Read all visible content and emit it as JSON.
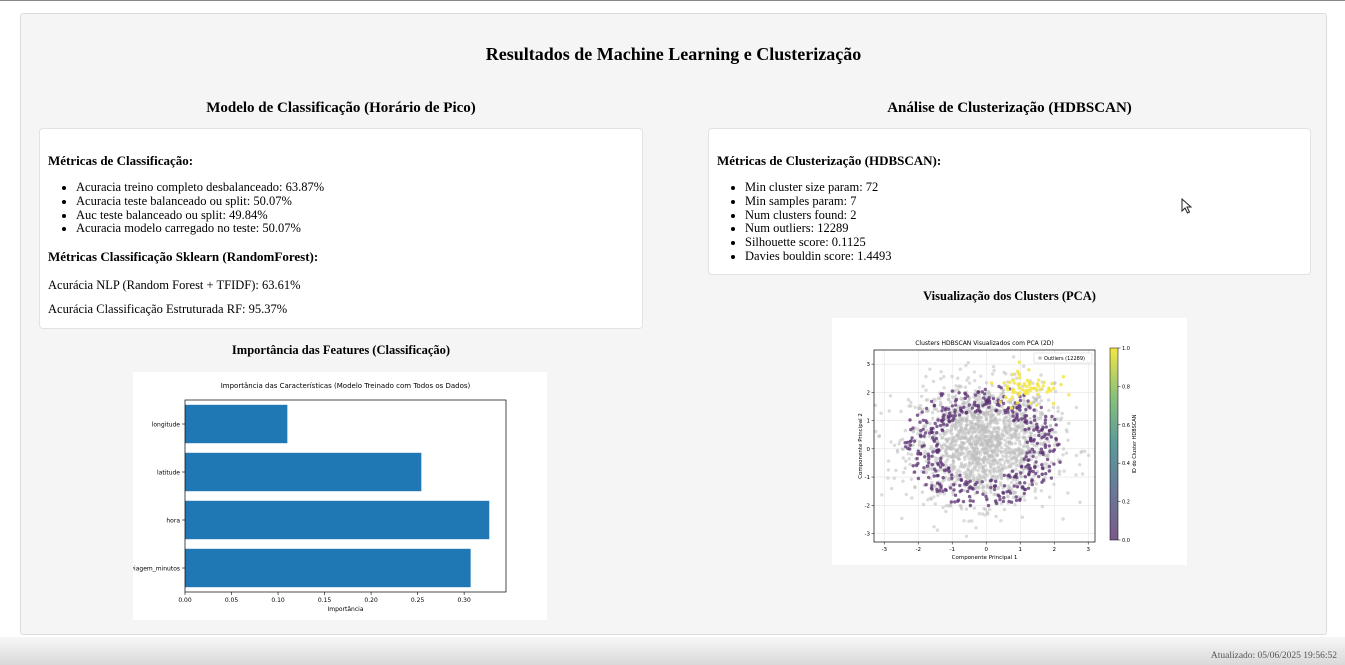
{
  "main_title": "Resultados de Machine Learning e Clusterização",
  "classification": {
    "title": "Modelo de Classificação (Horário de Pico)",
    "metrics_heading": "Métricas de Classificação:",
    "metrics": [
      "Acuracia treino completo desbalanceado: 63.87%",
      "Acuracia teste balanceado ou split: 50.07%",
      "Auc teste balanceado ou split: 49.84%",
      "Acuracia modelo carregado no teste: 50.07%"
    ],
    "sklearn_heading": "Métricas Classificação Sklearn (RandomForest):",
    "nlp_accuracy": "Acurácia NLP (Random Forest + TFIDF): 63.61%",
    "structured_accuracy": "Acurácia Classificação Estruturada RF: 95.37%",
    "importance_title": "Importância das Features (Classificação)"
  },
  "clustering": {
    "title": "Análise de Clusterização (HDBSCAN)",
    "metrics_heading": "Métricas de Clusterização (HDBSCAN):",
    "metrics": [
      "Min cluster size param: 72",
      "Min samples param: 7",
      "Num clusters found: 2",
      "Num outliers: 12289",
      "Silhouette score: 0.1125",
      "Davies bouldin score: 1.4493"
    ],
    "visual_title": "Visualização dos Clusters (PCA)"
  },
  "status": {
    "updated": "Atualizado: 05/06/2025 19:56:52"
  },
  "colors": {
    "bar": "#1f77b4",
    "outlier": "#bdbdbd",
    "cluster0": "#5a2f72",
    "cluster1": "#f3e544"
  },
  "chart_data": [
    {
      "type": "bar",
      "orientation": "horizontal",
      "title": "Importância das Características (Modelo Treinado com Todos os Dados)",
      "xlabel": "Importância",
      "ylabel": "",
      "categories": [
        "longitude",
        "latitude",
        "hora",
        "viagem_minutos"
      ],
      "values": [
        0.11,
        0.254,
        0.327,
        0.307
      ],
      "xlim": [
        0.0,
        0.345
      ],
      "xticks": [
        "0.00",
        "0.05",
        "0.10",
        "0.15",
        "0.20",
        "0.25",
        "0.30"
      ],
      "grid": false
    },
    {
      "type": "scatter",
      "title": "Clusters HDBSCAN Visualizados com PCA (2D)",
      "xlabel": "Componente Principal 1",
      "ylabel": "Componente Principal 2",
      "xlim": [
        -3.3,
        3.2
      ],
      "ylim": [
        -3.3,
        3.5
      ],
      "xticks": [
        "-3",
        "-2",
        "-1",
        "0",
        "1",
        "2",
        "3"
      ],
      "yticks": [
        "-3",
        "-2",
        "-1",
        "0",
        "1",
        "2",
        "3"
      ],
      "grid": true,
      "legend": {
        "placement": "top-right",
        "entries": [
          "Outliers (12289)"
        ]
      },
      "colorbar": {
        "label": "ID do Cluster HDBSCAN",
        "ticks": [
          "0.0",
          "0.2",
          "0.4",
          "0.6",
          "0.8",
          "1.0"
        ],
        "range": [
          0.0,
          1.0
        ]
      },
      "series": [
        {
          "cluster": -1,
          "center": [
            -0.1,
            0.2
          ],
          "spread": [
            1.05,
            1.05
          ],
          "count": 12289
        },
        {
          "cluster": 0,
          "pattern": "ring",
          "radius": 1.9
        },
        {
          "cluster": 1,
          "center": [
            1.2,
            2.2
          ],
          "spread": [
            0.45,
            0.35
          ]
        }
      ]
    }
  ]
}
